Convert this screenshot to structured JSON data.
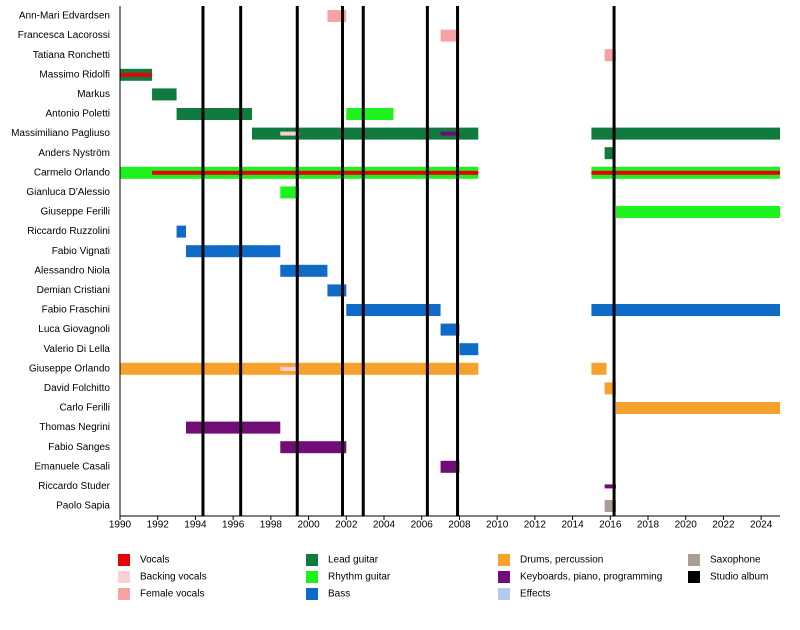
{
  "chart_data": {
    "type": "timeline",
    "xlim": [
      1990,
      2025
    ],
    "xticks": [
      1990,
      1992,
      1994,
      1996,
      1998,
      2000,
      2002,
      2004,
      2006,
      2008,
      2010,
      2012,
      2014,
      2016,
      2018,
      2020,
      2022,
      2024
    ],
    "roles": [
      {
        "name": "Vocals",
        "color": "#e8000b"
      },
      {
        "name": "Backing vocals",
        "color": "#fbd0d4"
      },
      {
        "name": "Female vocals",
        "color": "#f6a3a5"
      },
      {
        "name": "Lead guitar",
        "color": "#117a3e"
      },
      {
        "name": "Rhythm guitar",
        "color": "#1ef21e"
      },
      {
        "name": "Bass",
        "color": "#0f6ac8"
      },
      {
        "name": "Drums, percussion",
        "color": "#f7a12d"
      },
      {
        "name": "Keyboards, piano, programming",
        "color": "#720c76"
      },
      {
        "name": "Effects",
        "color": "#b3c9f2"
      },
      {
        "name": "Saxophone",
        "color": "#ae9b98"
      }
    ],
    "albums": {
      "name": "Studio album",
      "color": "#000000",
      "years": [
        1994.4,
        1996.4,
        1999.4,
        2001.8,
        2002.9,
        2006.3,
        2007.9,
        2016.2
      ]
    },
    "members": [
      {
        "name": "Ann-Mari Edvardsen",
        "periods": [
          {
            "role": "Female vocals",
            "start": 2001.0,
            "end": 2002.0
          }
        ]
      },
      {
        "name": "Francesca Lacorossi",
        "periods": [
          {
            "role": "Female vocals",
            "start": 2007.0,
            "end": 2008.0
          }
        ]
      },
      {
        "name": "Tatiana Ronchetti",
        "periods": [
          {
            "role": "Female vocals",
            "start": 2015.7,
            "end": 2016.3
          }
        ]
      },
      {
        "name": "Massimo Ridolfi",
        "periods": [
          {
            "role": "Lead guitar",
            "start": 1990.0,
            "end": 1991.7
          }
        ],
        "overlays": [
          {
            "role": "Vocals",
            "start": 1990.0,
            "end": 1991.7
          }
        ]
      },
      {
        "name": "Markus",
        "periods": [
          {
            "role": "Lead guitar",
            "start": 1991.7,
            "end": 1993.0
          }
        ]
      },
      {
        "name": "Antonio Poletti",
        "periods": [
          {
            "role": "Lead guitar",
            "start": 1993.0,
            "end": 1997.0
          },
          {
            "role": "Rhythm guitar",
            "start": 2002.0,
            "end": 2004.5
          }
        ]
      },
      {
        "name": "Massimiliano Pagliuso",
        "periods": [
          {
            "role": "Lead guitar",
            "start": 1997.0,
            "end": 2009.0
          },
          {
            "role": "Lead guitar",
            "start": 2015.0,
            "end": 2025.0
          }
        ],
        "overlays": [
          {
            "role": "Backing vocals",
            "start": 1998.5,
            "end": 1999.5
          },
          {
            "role": "Keyboards, piano, programming",
            "start": 2007.0,
            "end": 2008.0
          }
        ]
      },
      {
        "name": "Anders Nyström",
        "periods": [
          {
            "role": "Lead guitar",
            "start": 2015.7,
            "end": 2016.2
          }
        ]
      },
      {
        "name": "Carmelo Orlando",
        "periods": [
          {
            "role": "Rhythm guitar",
            "start": 1990.0,
            "end": 2009.0
          },
          {
            "role": "Rhythm guitar",
            "start": 2015.0,
            "end": 2025.0
          }
        ],
        "overlays": [
          {
            "role": "Vocals",
            "start": 1991.7,
            "end": 2009.0
          },
          {
            "role": "Vocals",
            "start": 2015.0,
            "end": 2025.0
          }
        ]
      },
      {
        "name": "Gianluca D'Alessio",
        "periods": [
          {
            "role": "Rhythm guitar",
            "start": 1998.5,
            "end": 1999.5
          }
        ]
      },
      {
        "name": "Giuseppe Ferilli",
        "periods": [
          {
            "role": "Rhythm guitar",
            "start": 2016.3,
            "end": 2025.0
          }
        ]
      },
      {
        "name": "Riccardo Ruzzolini",
        "periods": [
          {
            "role": "Bass",
            "start": 1993.0,
            "end": 1993.5
          }
        ]
      },
      {
        "name": "Fabio Vignati",
        "periods": [
          {
            "role": "Bass",
            "start": 1993.5,
            "end": 1998.5
          }
        ]
      },
      {
        "name": "Alessandro Niola",
        "periods": [
          {
            "role": "Bass",
            "start": 1998.5,
            "end": 2001.0
          }
        ]
      },
      {
        "name": "Demian Cristiani",
        "periods": [
          {
            "role": "Bass",
            "start": 2001.0,
            "end": 2002.0
          }
        ]
      },
      {
        "name": "Fabio Fraschini",
        "periods": [
          {
            "role": "Bass",
            "start": 2002.0,
            "end": 2007.0
          },
          {
            "role": "Bass",
            "start": 2015.0,
            "end": 2025.0
          }
        ]
      },
      {
        "name": "Luca Giovagnoli",
        "periods": [
          {
            "role": "Bass",
            "start": 2007.0,
            "end": 2008.0
          }
        ]
      },
      {
        "name": "Valerio Di Lella",
        "periods": [
          {
            "role": "Bass",
            "start": 2008.0,
            "end": 2009.0
          }
        ]
      },
      {
        "name": "Giuseppe Orlando",
        "periods": [
          {
            "role": "Drums, percussion",
            "start": 1990.0,
            "end": 2009.0
          },
          {
            "role": "Drums, percussion",
            "start": 2015.0,
            "end": 2015.8
          }
        ],
        "overlays": [
          {
            "role": "Backing vocals",
            "start": 1998.5,
            "end": 1999.5
          }
        ]
      },
      {
        "name": "David Folchitto",
        "periods": [
          {
            "role": "Drums, percussion",
            "start": 2015.7,
            "end": 2016.3
          }
        ]
      },
      {
        "name": "Carlo Ferilli",
        "periods": [
          {
            "role": "Drums, percussion",
            "start": 2016.3,
            "end": 2025.0
          }
        ]
      },
      {
        "name": "Thomas Negrini",
        "periods": [
          {
            "role": "Keyboards, piano, programming",
            "start": 1993.5,
            "end": 1998.5
          }
        ]
      },
      {
        "name": "Fabio Sanges",
        "periods": [
          {
            "role": "Keyboards, piano, programming",
            "start": 1998.5,
            "end": 2002.0
          }
        ]
      },
      {
        "name": "Emanuele Casali",
        "periods": [
          {
            "role": "Keyboards, piano, programming",
            "start": 2007.0,
            "end": 2008.0
          }
        ]
      },
      {
        "name": "Riccardo Studer",
        "overlays": [
          {
            "role": "Keyboards, piano, programming",
            "start": 2015.7,
            "end": 2016.3
          }
        ]
      },
      {
        "name": "Paolo Sapia",
        "periods": [
          {
            "role": "Saxophone",
            "start": 2015.7,
            "end": 2016.3
          }
        ]
      }
    ]
  }
}
